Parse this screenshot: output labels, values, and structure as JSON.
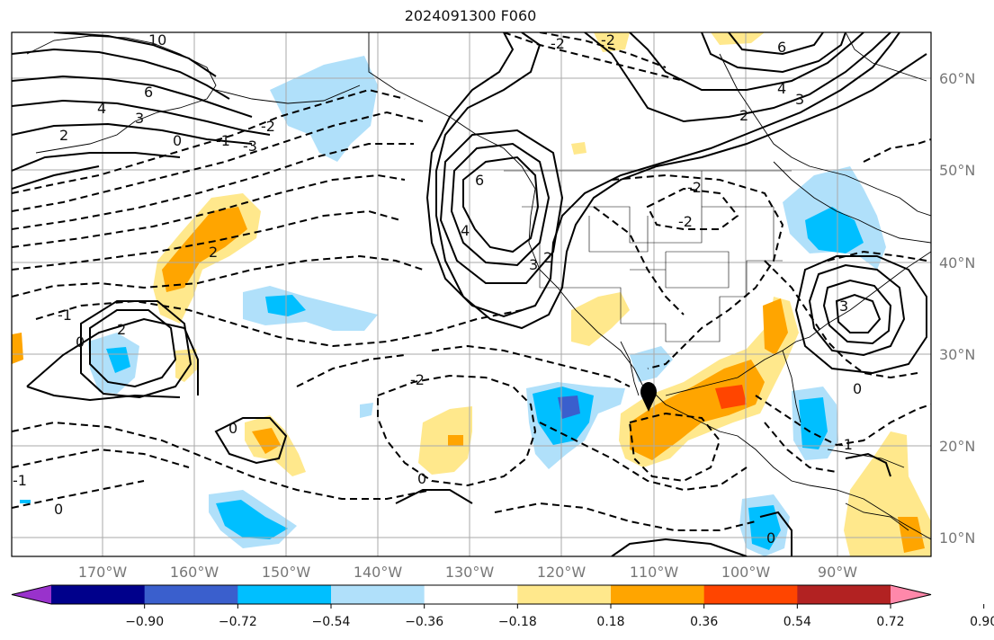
{
  "title": "2024091300 F060",
  "lat_labels": [
    "60°N",
    "50°N",
    "40°N",
    "30°N",
    "20°N",
    "10°N"
  ],
  "lon_labels": [
    "170°W",
    "160°W",
    "150°W",
    "140°W",
    "130°W",
    "120°W",
    "110°W",
    "100°W",
    "90°W"
  ],
  "colorbar": {
    "colors": [
      "#9932cc",
      "#00008b",
      "#3a5fcd",
      "#00bfff",
      "#b0e0fa",
      "#ffffff",
      "#ffe88c",
      "#ffa500",
      "#ff4500",
      "#b22222",
      "#ff88aa"
    ],
    "ticks": [
      "−0.90",
      "−0.72",
      "−0.54",
      "−0.36",
      "−0.18",
      "0.18",
      "0.36",
      "0.54",
      "0.72",
      "0.90"
    ]
  },
  "contour_labels": [
    {
      "t": "10"
    },
    {
      "t": "6"
    },
    {
      "t": "4"
    },
    {
      "t": "3"
    },
    {
      "t": "2"
    },
    {
      "t": "-1"
    },
    {
      "t": "0"
    },
    {
      "t": "-2"
    },
    {
      "t": "-3"
    },
    {
      "t": "2"
    },
    {
      "t": "6"
    },
    {
      "t": "4"
    },
    {
      "t": "3"
    },
    {
      "t": "2"
    },
    {
      "t": "-2"
    },
    {
      "t": "-2"
    },
    {
      "t": "6"
    },
    {
      "t": "4"
    },
    {
      "t": "3"
    },
    {
      "t": "2"
    },
    {
      "t": "3"
    },
    {
      "t": "-2"
    },
    {
      "t": "-1"
    },
    {
      "t": "0"
    },
    {
      "t": "0"
    },
    {
      "t": "-1"
    },
    {
      "t": "0"
    },
    {
      "t": "0"
    },
    {
      "t": "-2"
    },
    {
      "t": "-2"
    },
    {
      "t": "-1"
    },
    {
      "t": "0"
    },
    {
      "t": "2"
    },
    {
      "t": "0"
    }
  ]
}
